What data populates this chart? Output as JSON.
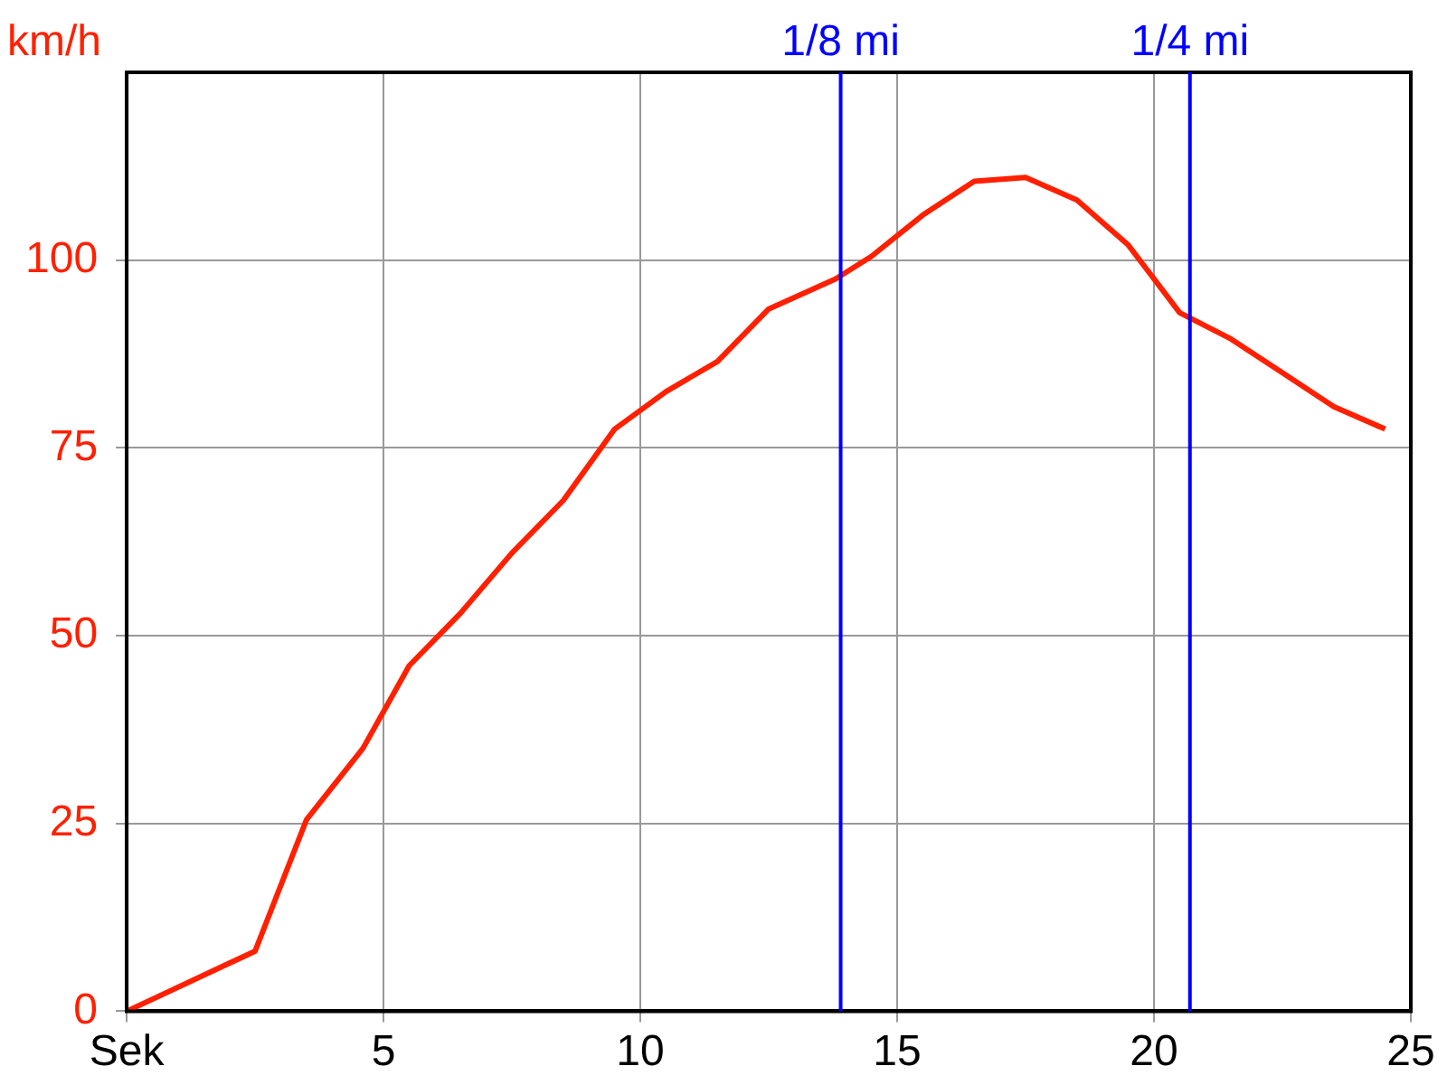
{
  "chart_data": {
    "type": "line",
    "ylabel": "km/h",
    "x": [
      0,
      2.5,
      3.5,
      4.6,
      5.5,
      6.5,
      7.5,
      8.5,
      9.5,
      10.5,
      11.5,
      12.5,
      13.8,
      14.5,
      15.5,
      16.5,
      17.5,
      18.5,
      19.5,
      20.5,
      21.5,
      22.5,
      23.5,
      24.5
    ],
    "series": [
      {
        "color": "#ff2000",
        "values": [
          0,
          8,
          25.5,
          35,
          46,
          53,
          61,
          68,
          77.5,
          82.5,
          86.5,
          93.5,
          97.5,
          100.5,
          106,
          110.5,
          111,
          108,
          102,
          93,
          89.5,
          85,
          80.5,
          77.5
        ]
      }
    ],
    "xlim": [
      0,
      25
    ],
    "xticks": [
      {
        "value": 0,
        "label": "Sek"
      },
      5,
      10,
      15,
      20,
      25
    ],
    "ylim": [
      0,
      125
    ],
    "yticks": [
      0,
      25,
      50,
      75,
      100
    ],
    "ref_lines": [
      {
        "axis": "x",
        "value": 13.9,
        "label": "1/8 mi",
        "color": "#0000ff"
      },
      {
        "axis": "x",
        "value": 20.7,
        "label": "1/4 mi",
        "color": "#0000ff"
      }
    ],
    "grid": true,
    "legend": false,
    "marker": "none",
    "line_style": "solid"
  }
}
